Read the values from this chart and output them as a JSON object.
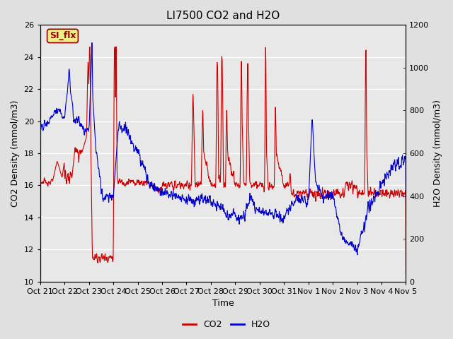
{
  "title": "LI7500 CO2 and H2O",
  "xlabel": "Time",
  "ylabel_left": "CO2 Density (mmol/m3)",
  "ylabel_right": "H2O Density (mmol/m3)",
  "ylim_left": [
    10,
    26
  ],
  "ylim_right": [
    0,
    1200
  ],
  "yticks_left": [
    10,
    12,
    14,
    16,
    18,
    20,
    22,
    24,
    26
  ],
  "yticks_right": [
    0,
    200,
    400,
    600,
    800,
    1000,
    1200
  ],
  "xtick_labels": [
    "Oct 21",
    "Oct 22",
    "Oct 23",
    "Oct 24",
    "Oct 25",
    "Oct 26",
    "Oct 27",
    "Oct 28",
    "Oct 29",
    "Oct 30",
    "Oct 31",
    "Nov 1",
    "Nov 2",
    "Nov 3",
    "Nov 4",
    "Nov 5"
  ],
  "color_co2": "#cc0000",
  "color_h2o": "#0000cc",
  "legend_label_co2": "CO2",
  "legend_label_h2o": "H2O",
  "annotation_text": "SI_flx",
  "annotation_bg": "#eeee88",
  "annotation_border": "#990000",
  "background_color": "#e8e8e8",
  "fig_background": "#e0e0e0",
  "grid_color": "#ffffff",
  "title_fontsize": 11,
  "label_fontsize": 9,
  "tick_fontsize": 8,
  "legend_fontsize": 9
}
